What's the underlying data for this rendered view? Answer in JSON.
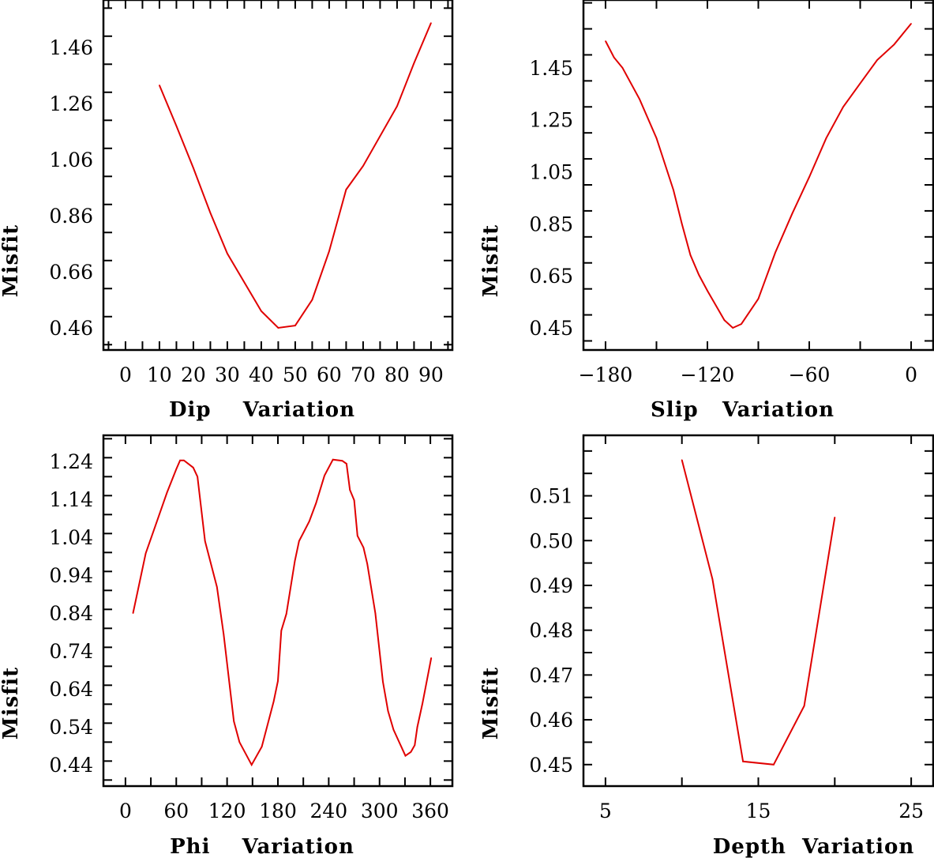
{
  "chart_data": [
    {
      "type": "line",
      "xlabel": "Dip    Variation",
      "ylabel": "Misfit",
      "xlim": [
        -6.5,
        96.3
      ],
      "ylim": [
        0.381,
        1.629
      ],
      "xticks": [
        0,
        10,
        20,
        30,
        40,
        50,
        60,
        70,
        80,
        90
      ],
      "xtick_labels": [
        "0",
        "10",
        "20",
        "30",
        "40",
        "50",
        "60",
        "70",
        "80",
        "90"
      ],
      "xminor_step": 5,
      "yticks": [
        0.46,
        0.66,
        0.86,
        1.06,
        1.26,
        1.46
      ],
      "ytick_labels": [
        "0.46",
        "0.66",
        "0.86",
        "1.06",
        "1.26",
        "1.46"
      ],
      "yminor_step": 0.1,
      "grid": false,
      "color": "#e00000",
      "x": [
        10,
        15,
        20,
        25,
        30,
        40,
        45,
        50,
        55,
        60,
        65,
        70,
        80,
        85,
        90
      ],
      "y": [
        1.325,
        1.18,
        1.03,
        0.87,
        0.725,
        0.52,
        0.46,
        0.468,
        0.56,
        0.733,
        0.953,
        1.037,
        1.25,
        1.404,
        1.547
      ]
    },
    {
      "type": "line",
      "xlabel": "Slip   Variation",
      "ylabel": "Misfit",
      "xlim": [
        -193,
        13
      ],
      "ylim": [
        0.365,
        1.711
      ],
      "xticks": [
        -180,
        -120,
        -60,
        0
      ],
      "xtick_labels": [
        "−180",
        "−120",
        "−60",
        "0"
      ],
      "xminor_step": 30,
      "yticks": [
        0.45,
        0.65,
        0.85,
        1.05,
        1.25,
        1.45
      ],
      "ytick_labels": [
        "0.45",
        "0.65",
        "0.85",
        "1.05",
        "1.25",
        "1.45"
      ],
      "yminor_step": 0.1,
      "grid": false,
      "color": "#e00000",
      "x": [
        -180,
        -175,
        -170,
        -160,
        -150,
        -140,
        -135,
        -130,
        -125,
        -120,
        -110,
        -105,
        -100,
        -90,
        -80,
        -70,
        -60,
        -50,
        -40,
        -30,
        -20,
        -10,
        0
      ],
      "y": [
        1.553,
        1.49,
        1.45,
        1.33,
        1.18,
        0.98,
        0.85,
        0.73,
        0.654,
        0.593,
        0.48,
        0.45,
        0.465,
        0.562,
        0.74,
        0.89,
        1.03,
        1.18,
        1.3,
        1.39,
        1.48,
        1.54,
        1.62
      ]
    },
    {
      "type": "line",
      "xlabel": "Phi    Variation",
      "ylabel": "Misfit",
      "xlim": [
        -26,
        386
      ],
      "ylim": [
        0.384,
        1.309
      ],
      "xticks": [
        0,
        60,
        120,
        180,
        240,
        300,
        360
      ],
      "xtick_labels": [
        "0",
        "60",
        "120",
        "180",
        "240",
        "300",
        "360"
      ],
      "xminor_step": 30,
      "yticks": [
        0.44,
        0.54,
        0.64,
        0.74,
        0.84,
        0.94,
        1.04,
        1.14,
        1.24
      ],
      "ytick_labels": [
        "0.44",
        "0.54",
        "0.64",
        "0.74",
        "0.84",
        "0.94",
        "1.04",
        "1.14",
        "1.24"
      ],
      "yminor_step": 0.05,
      "grid": false,
      "color": "#e00000",
      "x": [
        9,
        24,
        35,
        49,
        60,
        64.5,
        69,
        80,
        85,
        94,
        108,
        116,
        128,
        134.6,
        149,
        161,
        175,
        180,
        184,
        190,
        200,
        205,
        217,
        225,
        235,
        245,
        256,
        261,
        265,
        270,
        274,
        281,
        285.5,
        295,
        304,
        310,
        316.5,
        330.5,
        337,
        341.5,
        344.6,
        350.7,
        361
      ],
      "y": [
        0.84,
        0.998,
        1.068,
        1.158,
        1.22,
        1.243,
        1.243,
        1.224,
        1.2,
        1.03,
        0.909,
        0.784,
        0.555,
        0.5,
        0.44,
        0.488,
        0.607,
        0.661,
        0.794,
        0.838,
        0.978,
        1.03,
        1.082,
        1.13,
        1.203,
        1.245,
        1.242,
        1.234,
        1.165,
        1.138,
        1.044,
        1.013,
        0.97,
        0.84,
        0.659,
        0.582,
        0.533,
        0.464,
        0.474,
        0.492,
        0.54,
        0.602,
        0.722
      ]
    },
    {
      "type": "line",
      "xlabel": "Depth  Variation",
      "ylabel": "Misfit",
      "xlim": [
        3.56,
        26.44
      ],
      "ylim": [
        0.4452,
        0.5235
      ],
      "xticks": [
        5,
        15,
        25
      ],
      "xtick_labels": [
        "5",
        "15",
        "25"
      ],
      "xminor_step": 5,
      "yticks": [
        0.45,
        0.46,
        0.47,
        0.48,
        0.49,
        0.5,
        0.51
      ],
      "ytick_labels": [
        "0.45",
        "0.46",
        "0.47",
        "0.48",
        "0.49",
        "0.50",
        "0.51"
      ],
      "yminor_step": 0.005,
      "grid": false,
      "color": "#e00000",
      "x": [
        10,
        12,
        14,
        16,
        18,
        20
      ],
      "y": [
        0.518,
        0.4914,
        0.4507,
        0.45,
        0.4631,
        0.5052
      ]
    }
  ]
}
